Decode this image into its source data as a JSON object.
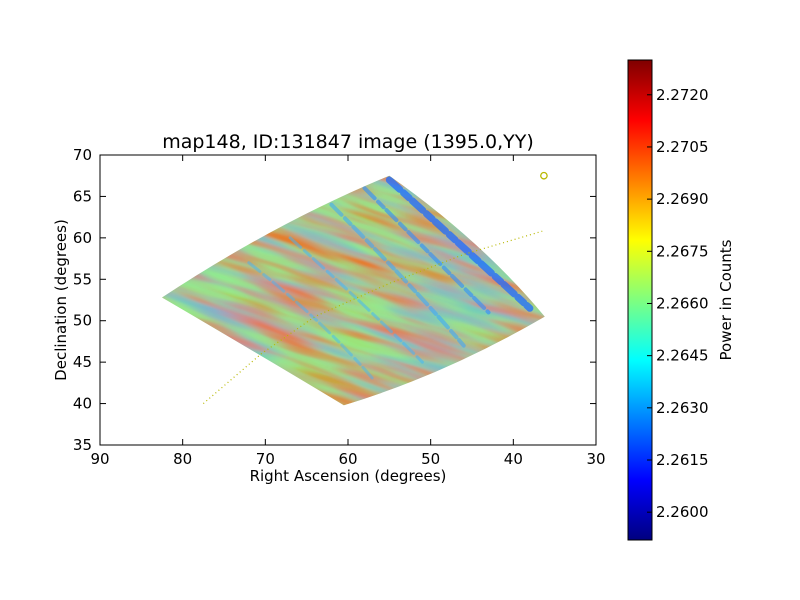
{
  "chart_data": {
    "type": "heatmap",
    "title": "map148, ID:131847 image (1395.0,YY)",
    "xlabel": "Right Ascension (degrees)",
    "ylabel": "Declination (degrees)",
    "xlim": [
      90,
      30
    ],
    "ylim": [
      35,
      70
    ],
    "x_ticks": [
      "90",
      "80",
      "70",
      "60",
      "50",
      "40",
      "30"
    ],
    "y_ticks": [
      "35",
      "40",
      "45",
      "50",
      "55",
      "60",
      "65",
      "70"
    ],
    "colorbar": {
      "label": "Power in Counts",
      "range": [
        2.2592,
        2.273
      ],
      "ticks": [
        "2.2600",
        "2.2615",
        "2.2630",
        "2.2645",
        "2.2660",
        "2.2675",
        "2.2690",
        "2.2705",
        "2.2720"
      ],
      "colormap": "jet"
    },
    "footprint_corners_deg": [
      [
        82.5,
        52.8
      ],
      [
        60.5,
        39.8
      ],
      [
        36.2,
        50.5
      ],
      [
        55.0,
        67.5
      ]
    ],
    "dotted_track": [
      [
        77.5,
        40.0
      ],
      [
        70.5,
        46.0
      ],
      [
        64.0,
        50.5
      ],
      [
        55.0,
        54.5
      ],
      [
        46.0,
        58.0
      ],
      [
        36.5,
        60.8
      ]
    ],
    "marker": {
      "ra": 36.3,
      "dec": 67.5,
      "shape": "open-circle",
      "color": "#b8b800"
    }
  }
}
